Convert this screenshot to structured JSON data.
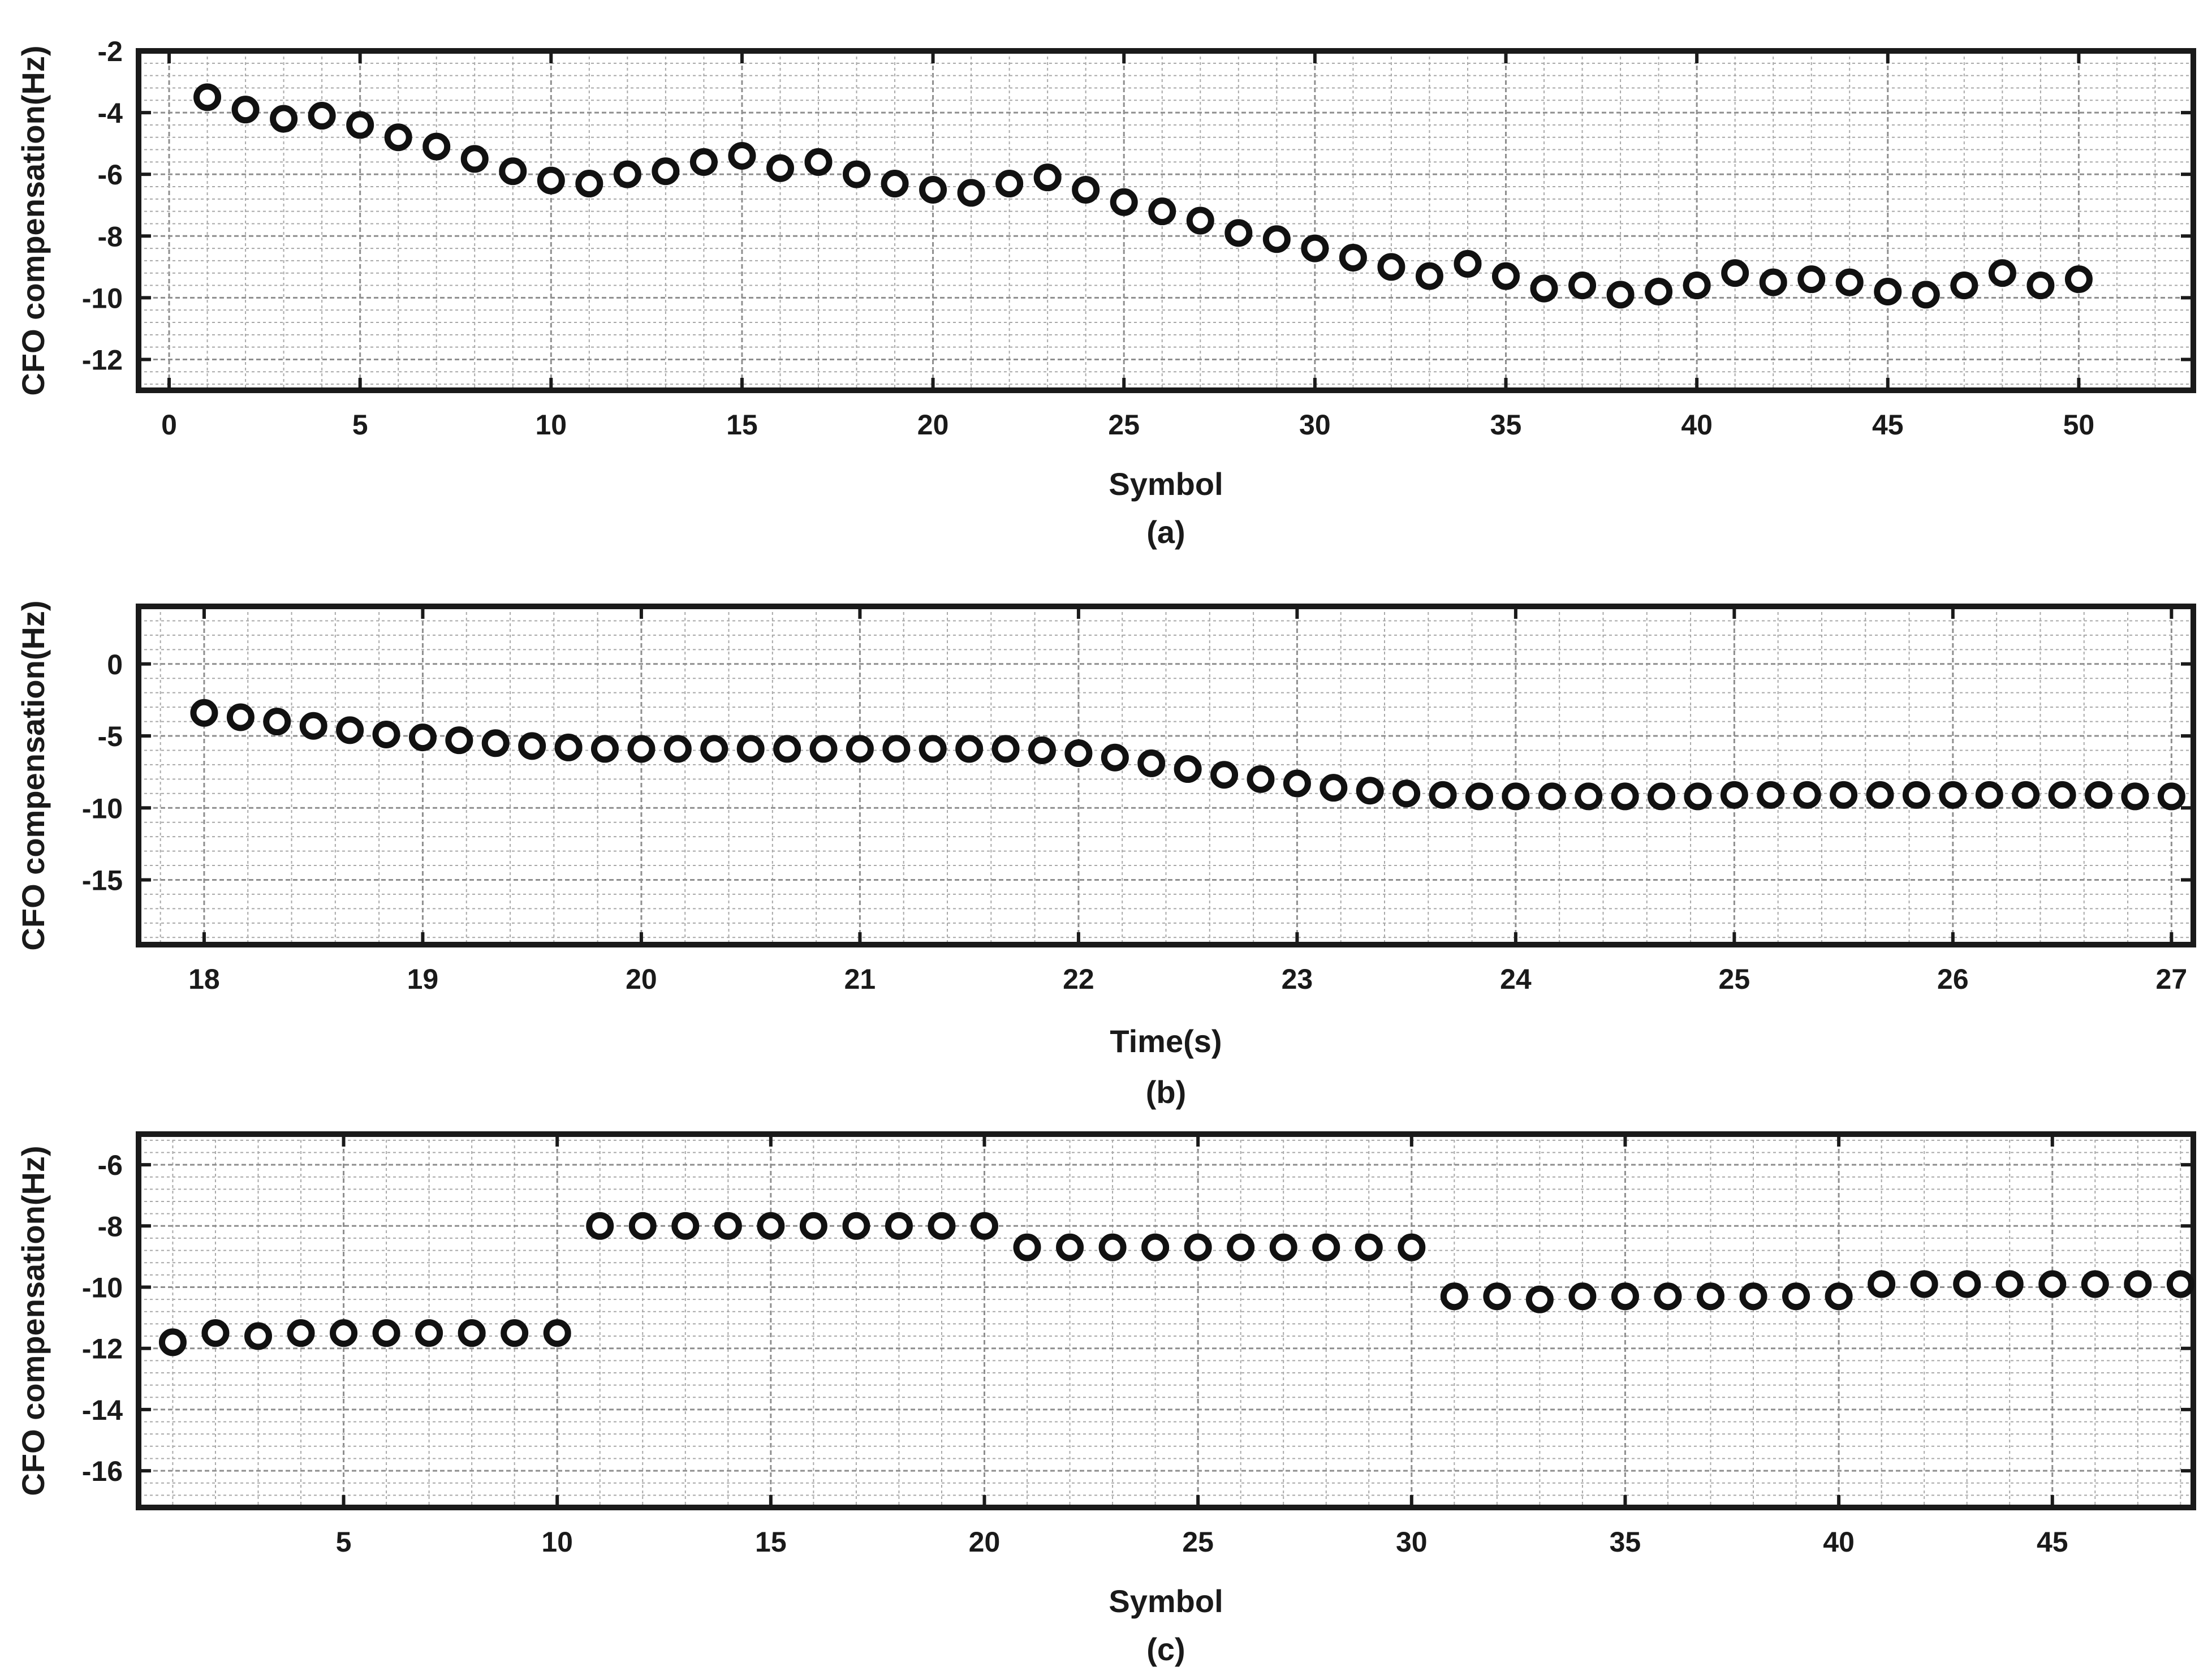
{
  "chart_data": [
    {
      "id": "a",
      "type": "scatter",
      "caption": "(a)",
      "xlabel": "Symbol",
      "ylabel": "CFO compensation(Hz)",
      "xlim": [
        -0.8,
        53
      ],
      "ylim": [
        -13,
        -2
      ],
      "xticks": [
        0,
        5,
        10,
        15,
        20,
        25,
        30,
        35,
        40,
        45,
        50
      ],
      "yticks": [
        -12,
        -10,
        -8,
        -6,
        -4,
        -2
      ],
      "grid": true,
      "x": [
        1,
        2,
        3,
        4,
        5,
        6,
        7,
        8,
        9,
        10,
        11,
        12,
        13,
        14,
        15,
        16,
        17,
        18,
        19,
        20,
        21,
        22,
        23,
        24,
        25,
        26,
        27,
        28,
        29,
        30,
        31,
        32,
        33,
        34,
        35,
        36,
        37,
        38,
        39,
        40,
        41,
        42,
        43,
        44,
        45,
        46,
        47,
        48,
        49,
        50
      ],
      "y": [
        -3.5,
        -3.9,
        -4.2,
        -4.1,
        -4.4,
        -4.8,
        -5.1,
        -5.5,
        -5.9,
        -6.2,
        -6.3,
        -6.0,
        -5.9,
        -5.6,
        -5.4,
        -5.8,
        -5.6,
        -6.0,
        -6.3,
        -6.5,
        -6.6,
        -6.3,
        -6.1,
        -6.5,
        -6.9,
        -7.2,
        -7.5,
        -7.9,
        -8.1,
        -8.4,
        -8.7,
        -9.0,
        -9.3,
        -8.9,
        -9.3,
        -9.7,
        -9.6,
        -9.9,
        -9.8,
        -9.6,
        -9.2,
        -9.5,
        -9.4,
        -9.5,
        -9.8,
        -9.9,
        -9.6,
        -9.2,
        -9.6,
        -9.4
      ]
    },
    {
      "id": "b",
      "type": "scatter",
      "caption": "(b)",
      "xlabel": "Time(s)",
      "ylabel": "CFO compensation(Hz)",
      "xlim": [
        17.7,
        27.1
      ],
      "ylim": [
        -19.5,
        4
      ],
      "xticks": [
        18,
        19,
        20,
        21,
        22,
        23,
        24,
        25,
        26,
        27
      ],
      "yticks": [
        -15,
        -10,
        -5,
        0
      ],
      "grid": true,
      "x": [
        18.0,
        18.1667,
        18.3333,
        18.5,
        18.6667,
        18.8333,
        19.0,
        19.1667,
        19.3333,
        19.5,
        19.6667,
        19.8333,
        20.0,
        20.1667,
        20.3333,
        20.5,
        20.6667,
        20.8333,
        21.0,
        21.1667,
        21.3333,
        21.5,
        21.6667,
        21.8333,
        22.0,
        22.1667,
        22.3333,
        22.5,
        22.6667,
        22.8333,
        23.0,
        23.1667,
        23.3333,
        23.5,
        23.6667,
        23.8333,
        24.0,
        24.1667,
        24.3333,
        24.5,
        24.6667,
        24.8333,
        25.0,
        25.1667,
        25.3333,
        25.5,
        25.6667,
        25.8333,
        26.0,
        26.1667,
        26.3333,
        26.5,
        26.6667,
        26.8333,
        27.0
      ],
      "y": [
        -3.4,
        -3.7,
        -4.0,
        -4.3,
        -4.6,
        -4.9,
        -5.1,
        -5.3,
        -5.5,
        -5.7,
        -5.8,
        -5.9,
        -5.9,
        -5.9,
        -5.9,
        -5.9,
        -5.9,
        -5.9,
        -5.9,
        -5.9,
        -5.9,
        -5.9,
        -5.9,
        -6.0,
        -6.2,
        -6.5,
        -6.9,
        -7.3,
        -7.7,
        -8.0,
        -8.3,
        -8.6,
        -8.8,
        -9.0,
        -9.1,
        -9.2,
        -9.2,
        -9.2,
        -9.2,
        -9.2,
        -9.2,
        -9.2,
        -9.1,
        -9.1,
        -9.1,
        -9.1,
        -9.1,
        -9.1,
        -9.1,
        -9.1,
        -9.1,
        -9.1,
        -9.1,
        -9.2,
        -9.2
      ]
    },
    {
      "id": "c",
      "type": "scatter",
      "caption": "(c)",
      "xlabel": "Symbol",
      "ylabel": "CFO compensation(Hz)",
      "xlim": [
        0.2,
        48.3
      ],
      "ylim": [
        -17.2,
        -5
      ],
      "xticks": [
        5,
        10,
        15,
        20,
        25,
        30,
        35,
        40,
        45
      ],
      "yticks": [
        -16,
        -14,
        -12,
        -10,
        -8,
        -6
      ],
      "grid": true,
      "x": [
        1,
        2,
        3,
        4,
        5,
        6,
        7,
        8,
        9,
        10,
        11,
        12,
        13,
        14,
        15,
        16,
        17,
        18,
        19,
        20,
        21,
        22,
        23,
        24,
        25,
        26,
        27,
        28,
        29,
        30,
        31,
        32,
        33,
        34,
        35,
        36,
        37,
        38,
        39,
        40,
        41,
        42,
        43,
        44,
        45,
        46,
        47,
        48
      ],
      "y": [
        -11.8,
        -11.5,
        -11.6,
        -11.5,
        -11.5,
        -11.5,
        -11.5,
        -11.5,
        -11.5,
        -11.5,
        -8.0,
        -8.0,
        -8.0,
        -8.0,
        -8.0,
        -8.0,
        -8.0,
        -8.0,
        -8.0,
        -8.0,
        -8.7,
        -8.7,
        -8.7,
        -8.7,
        -8.7,
        -8.7,
        -8.7,
        -8.7,
        -8.7,
        -8.7,
        -10.3,
        -10.3,
        -10.4,
        -10.3,
        -10.3,
        -10.3,
        -10.3,
        -10.3,
        -10.3,
        -10.3,
        -9.9,
        -9.9,
        -9.9,
        -9.9,
        -9.9,
        -9.9,
        -9.9,
        -9.9
      ]
    }
  ]
}
